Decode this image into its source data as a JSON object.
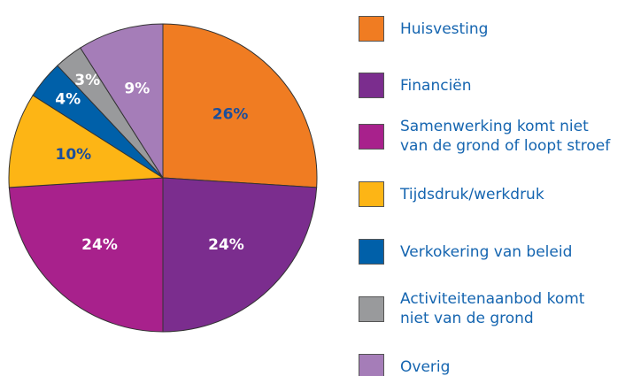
{
  "chart_data": {
    "type": "pie",
    "categories": [
      "Huisvesting",
      "Financiën",
      "Samenwerking komt niet\nvan de grond of loopt stroef",
      "Tijdsdruk/werkdruk",
      "Verkokering van beleid",
      "Activiteitenaanbod komt\nniet van de grond",
      "Overig"
    ],
    "values": [
      26,
      24,
      24,
      10,
      4,
      3,
      9
    ],
    "value_labels": [
      "26%",
      "24%",
      "24%",
      "10%",
      "4%",
      "3%",
      "9%"
    ],
    "colors": [
      "#f07c22",
      "#7b2d8e",
      "#a8218c",
      "#fdb515",
      "#0060a9",
      "#999a9c",
      "#a57db8"
    ],
    "label_colors": [
      "#1b4e9b",
      "#ffffff",
      "#ffffff",
      "#1b4e9b",
      "#ffffff",
      "#ffffff",
      "#ffffff"
    ]
  }
}
